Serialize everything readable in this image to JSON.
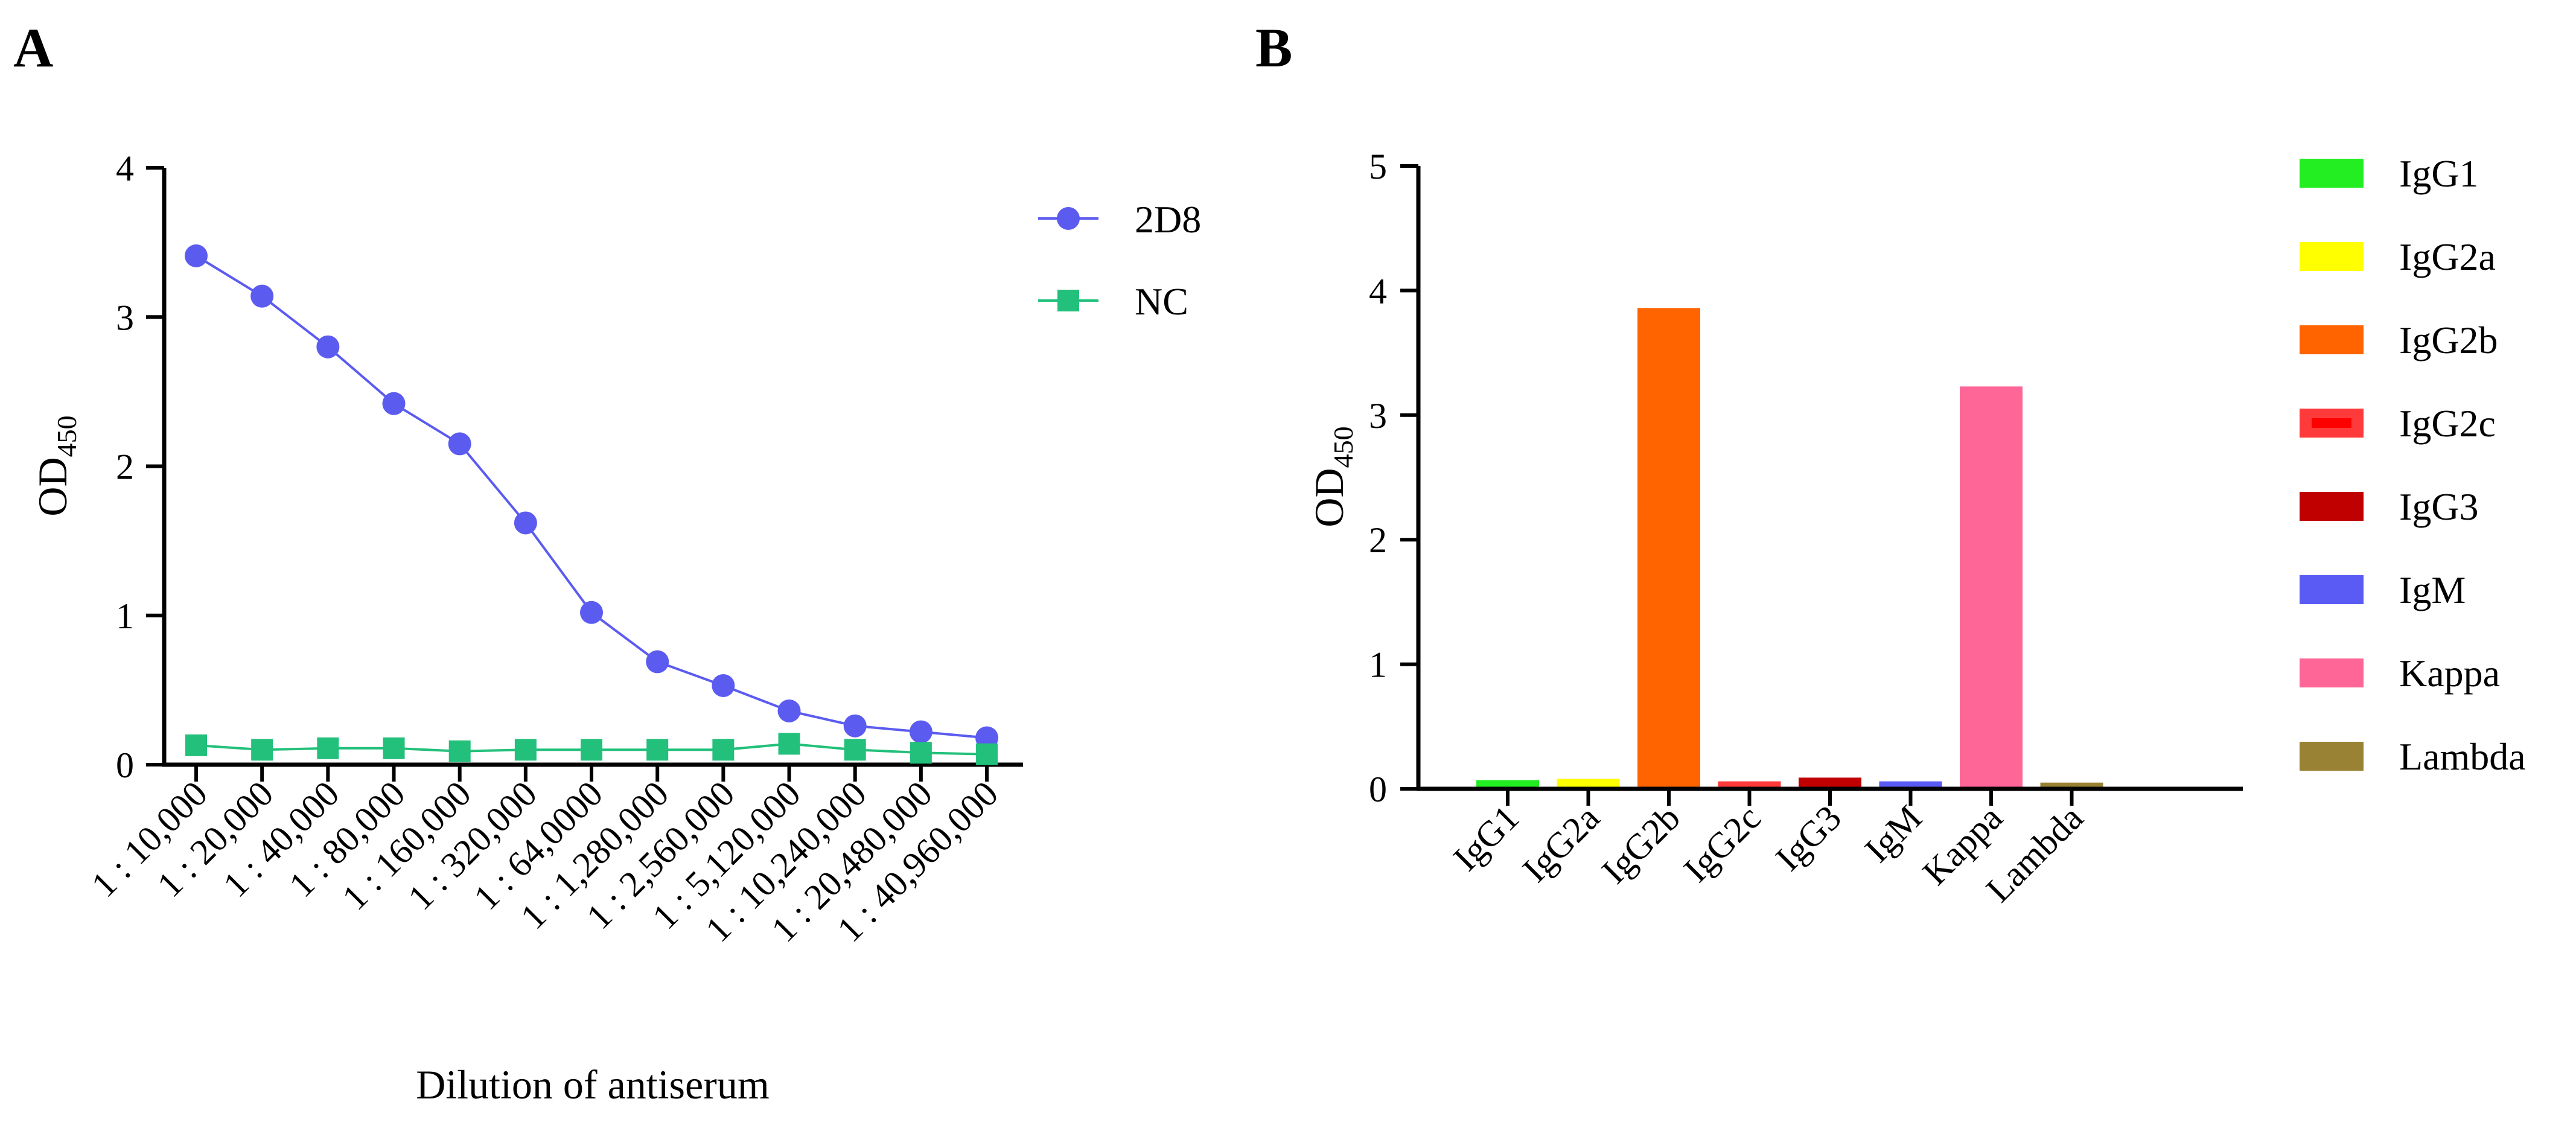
{
  "chart_data": [
    {
      "panel": "A",
      "type": "line",
      "title": "",
      "xlabel": "Dilution of antiserum",
      "ylabel": "OD",
      "ylabel_sub": "450",
      "ylim": [
        0,
        4
      ],
      "yticks": [
        "0",
        "1",
        "2",
        "3",
        "4"
      ],
      "grid": false,
      "legend_position": "top-right",
      "categories": [
        "1 : 10,000",
        "1 : 20,000",
        "1 : 40,000",
        "1 : 80,000",
        "1 : 160,000",
        "1 : 320,000",
        "1 : 64,0000",
        "1 : 1,280,000",
        "1 : 2,560,000",
        "1 : 5,120,000",
        "1 : 10,240,000",
        "1 : 20,480,000",
        "1 : 40,960,000"
      ],
      "series": [
        {
          "name": "2D8",
          "marker": "circle",
          "color": "#5b5bf0",
          "values": [
            3.41,
            3.14,
            2.8,
            2.42,
            2.15,
            1.62,
            1.02,
            0.69,
            0.53,
            0.36,
            0.26,
            0.22,
            0.18
          ]
        },
        {
          "name": "NC",
          "marker": "square",
          "color": "#22c07a",
          "values": [
            0.13,
            0.1,
            0.11,
            0.11,
            0.09,
            0.1,
            0.1,
            0.1,
            0.1,
            0.14,
            0.1,
            0.08,
            0.07
          ]
        }
      ]
    },
    {
      "panel": "B",
      "type": "bar",
      "title": "",
      "xlabel": "",
      "ylabel": "OD",
      "ylabel_sub": "450",
      "ylim": [
        0,
        5
      ],
      "yticks": [
        "0",
        "1",
        "2",
        "3",
        "4",
        "5"
      ],
      "grid": false,
      "legend_position": "right",
      "categories": [
        "IgG1",
        "IgG2a",
        "IgG2b",
        "IgG2c",
        "IgG3",
        "IgM",
        "Kappa",
        "Lambda"
      ],
      "values": [
        0.07,
        0.08,
        3.86,
        0.06,
        0.09,
        0.06,
        3.23,
        0.05
      ],
      "colors": [
        "#22ee22",
        "#ffff00",
        "#ff6400",
        "#ff3a3a",
        "#c00000",
        "#5a5af5",
        "#ff6698",
        "#9a8235"
      ],
      "legend": [
        {
          "label": "IgG1",
          "color": "#22ee22"
        },
        {
          "label": "IgG2a",
          "color": "#ffff00"
        },
        {
          "label": "IgG2b",
          "color": "#ff6400"
        },
        {
          "label": "IgG2c",
          "color": "#ff3a3a"
        },
        {
          "label": "IgG3",
          "color": "#c00000"
        },
        {
          "label": "IgM",
          "color": "#5a5af5"
        },
        {
          "label": "Kappa",
          "color": "#ff6698"
        },
        {
          "label": "Lambda",
          "color": "#9a8235"
        }
      ]
    }
  ]
}
